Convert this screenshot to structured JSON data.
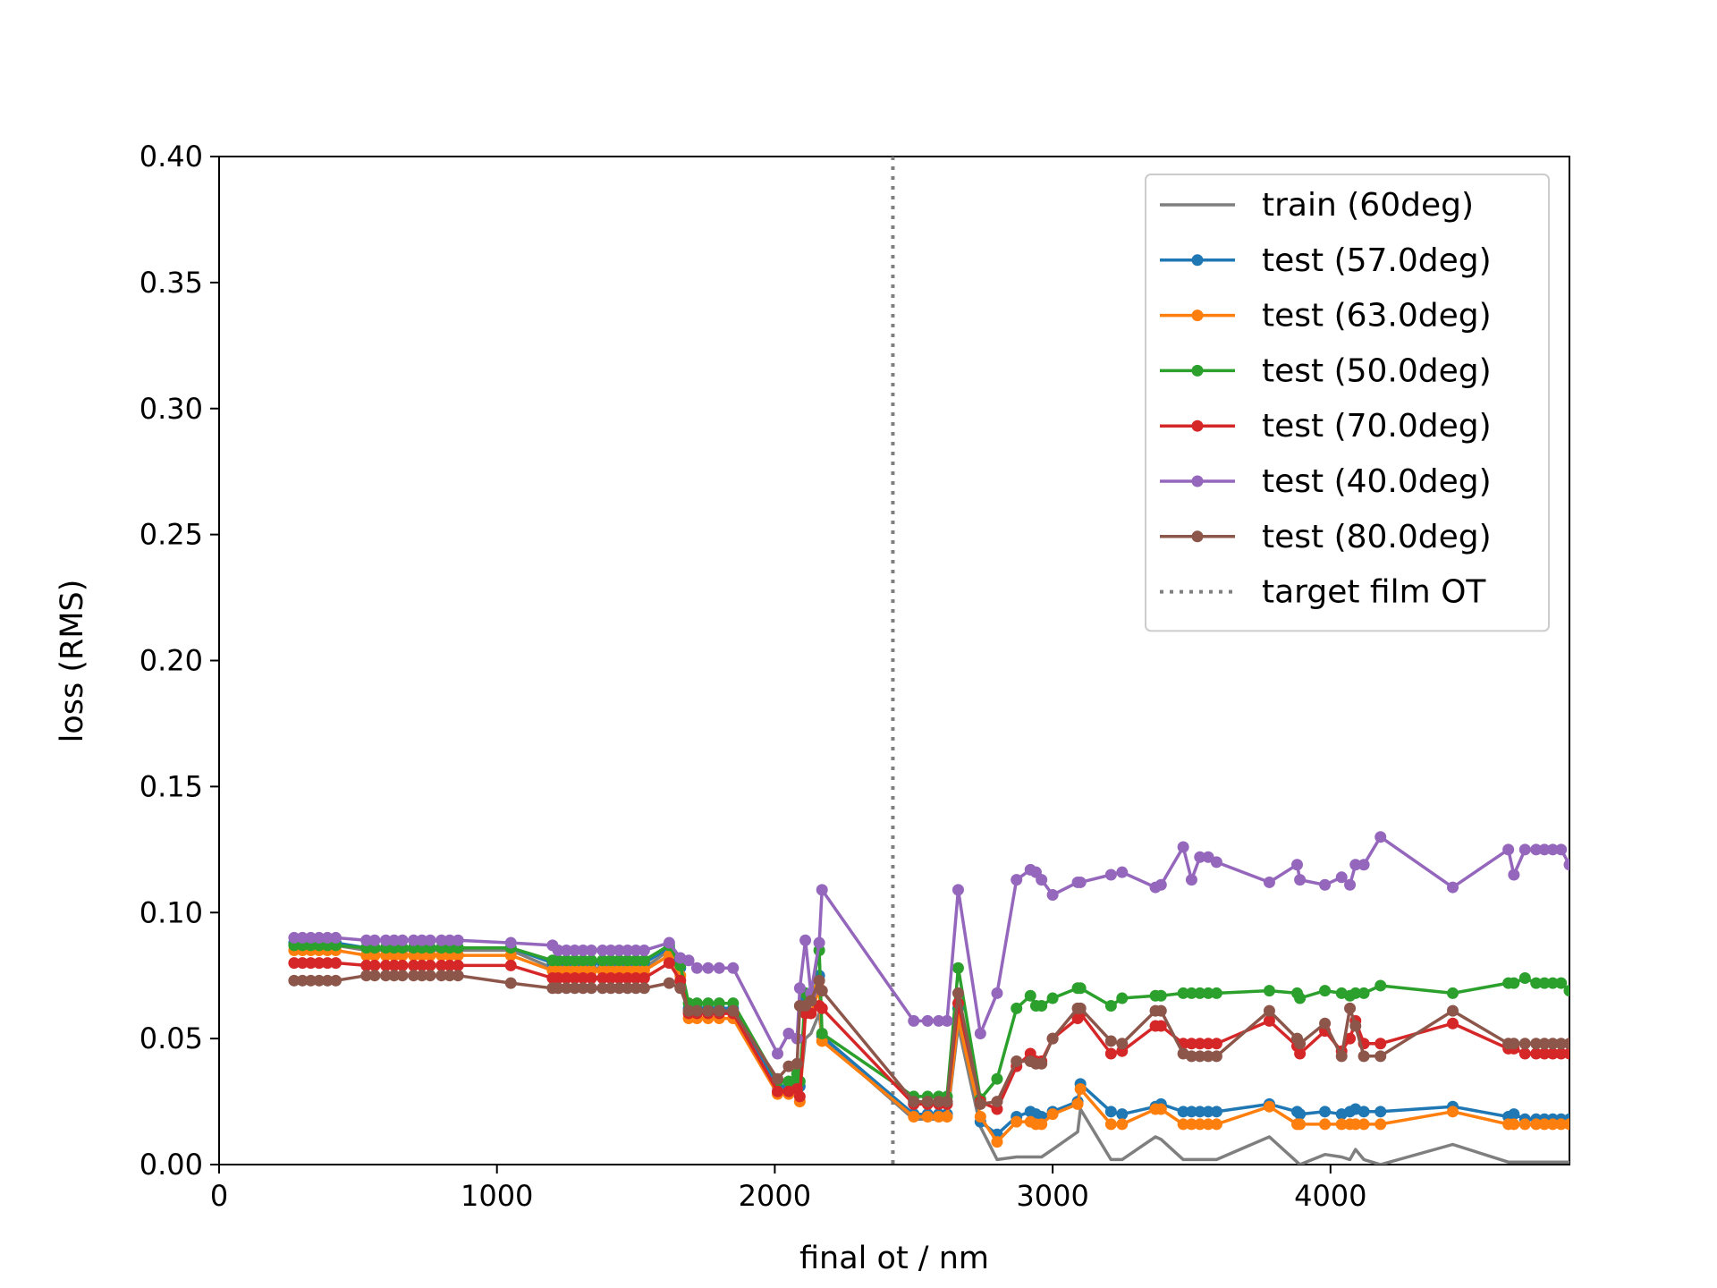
{
  "chart_data": {
    "type": "line",
    "title": "",
    "xlabel": "final ot / nm",
    "ylabel": "loss (RMS)",
    "xlim": [
      0,
      4860
    ],
    "ylim": [
      0,
      0.4
    ],
    "x_ticks": [
      0,
      1000,
      2000,
      3000,
      4000
    ],
    "x_tick_labels": [
      "0",
      "1000",
      "2000",
      "3000",
      "4000"
    ],
    "y_ticks": [
      0,
      0.05,
      0.1,
      0.15,
      0.2,
      0.25,
      0.3,
      0.35,
      0.4
    ],
    "y_tick_labels": [
      "0.00",
      "0.05",
      "0.10",
      "0.15",
      "0.20",
      "0.25",
      "0.30",
      "0.35",
      "0.40"
    ],
    "grid": false,
    "legend_position": "top-right",
    "x": [
      270,
      300,
      330,
      360,
      390,
      420,
      530,
      560,
      600,
      630,
      660,
      700,
      730,
      760,
      800,
      830,
      860,
      1050,
      1200,
      1220,
      1250,
      1280,
      1310,
      1340,
      1380,
      1410,
      1440,
      1470,
      1500,
      1530,
      1620,
      1660,
      1690,
      1720,
      1760,
      1800,
      1850,
      2010,
      2050,
      2080,
      2090,
      2110,
      2130,
      2160,
      2170,
      2500,
      2550,
      2590,
      2620,
      2660,
      2740,
      2800,
      2870,
      2920,
      2940,
      2960,
      3000,
      3090,
      3100,
      3210,
      3250,
      3370,
      3390,
      3470,
      3500,
      3530,
      3560,
      3590,
      3780,
      3880,
      3890,
      3980,
      4040,
      4070,
      4090,
      4120,
      4180,
      4440,
      4640,
      4660,
      4700,
      4740,
      4770,
      4800,
      4830,
      4860
    ],
    "series": [
      {
        "name": "train (60deg)",
        "color": "#7f7f7f",
        "markers": false,
        "values": [
          0.087,
          0.087,
          0.087,
          0.087,
          0.087,
          0.087,
          0.085,
          0.085,
          0.085,
          0.085,
          0.085,
          0.085,
          0.085,
          0.085,
          0.085,
          0.085,
          0.085,
          0.085,
          0.078,
          0.078,
          0.078,
          0.078,
          0.078,
          0.078,
          0.078,
          0.078,
          0.078,
          0.078,
          0.078,
          0.078,
          0.085,
          0.075,
          0.06,
          0.06,
          0.06,
          0.06,
          0.06,
          0.03,
          0.03,
          0.032,
          0.03,
          0.05,
          0.052,
          0.06,
          0.05,
          0.018,
          0.018,
          0.018,
          0.018,
          0.055,
          0.015,
          0.002,
          0.003,
          0.003,
          0.003,
          0.003,
          0.006,
          0.013,
          0.022,
          0.002,
          0.002,
          0.011,
          0.01,
          0.002,
          0.002,
          0.002,
          0.002,
          0.002,
          0.011,
          0.001,
          0.0,
          0.004,
          0.003,
          0.002,
          0.006,
          0.002,
          0.0,
          0.008,
          0.001,
          0.001,
          0.001,
          0.001,
          0.001,
          0.001,
          0.001,
          0.001
        ]
      },
      {
        "name": "test (57.0deg)",
        "color": "#1f77b4",
        "markers": true,
        "values": [
          0.088,
          0.088,
          0.088,
          0.088,
          0.088,
          0.088,
          0.086,
          0.086,
          0.086,
          0.086,
          0.086,
          0.086,
          0.086,
          0.086,
          0.086,
          0.086,
          0.086,
          0.086,
          0.08,
          0.08,
          0.08,
          0.08,
          0.08,
          0.08,
          0.08,
          0.08,
          0.08,
          0.08,
          0.08,
          0.08,
          0.086,
          0.078,
          0.062,
          0.062,
          0.062,
          0.062,
          0.062,
          0.031,
          0.031,
          0.034,
          0.031,
          0.065,
          0.065,
          0.075,
          0.051,
          0.02,
          0.02,
          0.02,
          0.02,
          0.062,
          0.017,
          0.012,
          0.019,
          0.021,
          0.02,
          0.019,
          0.021,
          0.025,
          0.032,
          0.021,
          0.02,
          0.023,
          0.024,
          0.021,
          0.021,
          0.021,
          0.021,
          0.021,
          0.024,
          0.021,
          0.02,
          0.021,
          0.02,
          0.021,
          0.022,
          0.021,
          0.021,
          0.023,
          0.019,
          0.02,
          0.018,
          0.018,
          0.018,
          0.018,
          0.018,
          0.018
        ]
      },
      {
        "name": "test (63.0deg)",
        "color": "#ff7f0e",
        "markers": true,
        "values": [
          0.085,
          0.085,
          0.085,
          0.085,
          0.085,
          0.085,
          0.083,
          0.083,
          0.083,
          0.083,
          0.083,
          0.083,
          0.083,
          0.083,
          0.083,
          0.083,
          0.083,
          0.083,
          0.077,
          0.077,
          0.077,
          0.077,
          0.077,
          0.077,
          0.077,
          0.077,
          0.077,
          0.077,
          0.077,
          0.077,
          0.083,
          0.075,
          0.058,
          0.058,
          0.058,
          0.058,
          0.058,
          0.028,
          0.028,
          0.03,
          0.025,
          0.06,
          0.06,
          0.07,
          0.049,
          0.019,
          0.019,
          0.019,
          0.019,
          0.058,
          0.019,
          0.009,
          0.017,
          0.017,
          0.016,
          0.016,
          0.02,
          0.024,
          0.03,
          0.016,
          0.016,
          0.022,
          0.022,
          0.016,
          0.016,
          0.016,
          0.016,
          0.016,
          0.023,
          0.016,
          0.016,
          0.016,
          0.016,
          0.016,
          0.016,
          0.016,
          0.016,
          0.021,
          0.016,
          0.016,
          0.016,
          0.016,
          0.016,
          0.016,
          0.016,
          0.016
        ]
      },
      {
        "name": "test (50.0deg)",
        "color": "#2ca02c",
        "markers": true,
        "values": [
          0.087,
          0.087,
          0.087,
          0.087,
          0.087,
          0.087,
          0.086,
          0.086,
          0.086,
          0.086,
          0.086,
          0.086,
          0.086,
          0.086,
          0.086,
          0.086,
          0.086,
          0.086,
          0.081,
          0.081,
          0.081,
          0.081,
          0.081,
          0.081,
          0.081,
          0.081,
          0.081,
          0.081,
          0.081,
          0.081,
          0.087,
          0.079,
          0.064,
          0.064,
          0.064,
          0.064,
          0.064,
          0.033,
          0.033,
          0.036,
          0.033,
          0.068,
          0.068,
          0.085,
          0.052,
          0.027,
          0.027,
          0.027,
          0.027,
          0.078,
          0.026,
          0.034,
          0.062,
          0.067,
          0.063,
          0.063,
          0.066,
          0.07,
          0.07,
          0.063,
          0.066,
          0.067,
          0.067,
          0.068,
          0.068,
          0.068,
          0.068,
          0.068,
          0.069,
          0.068,
          0.066,
          0.069,
          0.068,
          0.067,
          0.068,
          0.068,
          0.071,
          0.068,
          0.072,
          0.072,
          0.074,
          0.072,
          0.072,
          0.072,
          0.072,
          0.069
        ]
      },
      {
        "name": "test (70.0deg)",
        "color": "#d62728",
        "markers": true,
        "values": [
          0.08,
          0.08,
          0.08,
          0.08,
          0.08,
          0.08,
          0.079,
          0.079,
          0.079,
          0.079,
          0.079,
          0.079,
          0.079,
          0.079,
          0.079,
          0.079,
          0.079,
          0.079,
          0.074,
          0.074,
          0.074,
          0.074,
          0.074,
          0.074,
          0.074,
          0.074,
          0.074,
          0.074,
          0.074,
          0.074,
          0.08,
          0.073,
          0.06,
          0.06,
          0.06,
          0.06,
          0.06,
          0.029,
          0.029,
          0.03,
          0.027,
          0.06,
          0.06,
          0.063,
          0.062,
          0.024,
          0.024,
          0.024,
          0.024,
          0.064,
          0.025,
          0.022,
          0.039,
          0.044,
          0.041,
          0.041,
          0.05,
          0.058,
          0.06,
          0.044,
          0.045,
          0.055,
          0.055,
          0.048,
          0.048,
          0.048,
          0.048,
          0.048,
          0.057,
          0.047,
          0.044,
          0.053,
          0.045,
          0.05,
          0.057,
          0.048,
          0.048,
          0.056,
          0.046,
          0.046,
          0.044,
          0.044,
          0.044,
          0.044,
          0.044,
          0.044
        ]
      },
      {
        "name": "test (40.0deg)",
        "color": "#9467bd",
        "markers": true,
        "values": [
          0.09,
          0.09,
          0.09,
          0.09,
          0.09,
          0.09,
          0.089,
          0.089,
          0.089,
          0.089,
          0.089,
          0.089,
          0.089,
          0.089,
          0.089,
          0.089,
          0.089,
          0.088,
          0.087,
          0.085,
          0.085,
          0.085,
          0.085,
          0.085,
          0.085,
          0.085,
          0.085,
          0.085,
          0.085,
          0.085,
          0.088,
          0.082,
          0.081,
          0.078,
          0.078,
          0.078,
          0.078,
          0.044,
          0.052,
          0.05,
          0.07,
          0.089,
          0.068,
          0.088,
          0.109,
          0.057,
          0.057,
          0.057,
          0.057,
          0.109,
          0.052,
          0.068,
          0.113,
          0.117,
          0.116,
          0.113,
          0.107,
          0.112,
          0.112,
          0.115,
          0.116,
          0.11,
          0.111,
          0.126,
          0.113,
          0.122,
          0.122,
          0.12,
          0.112,
          0.119,
          0.113,
          0.111,
          0.114,
          0.111,
          0.119,
          0.119,
          0.13,
          0.11,
          0.125,
          0.115,
          0.125,
          0.125,
          0.125,
          0.125,
          0.125,
          0.119
        ]
      },
      {
        "name": "test (80.0deg)",
        "color": "#8c564b",
        "markers": true,
        "values": [
          0.073,
          0.073,
          0.073,
          0.073,
          0.073,
          0.073,
          0.075,
          0.075,
          0.075,
          0.075,
          0.075,
          0.075,
          0.075,
          0.075,
          0.075,
          0.075,
          0.075,
          0.072,
          0.07,
          0.07,
          0.07,
          0.07,
          0.07,
          0.07,
          0.07,
          0.07,
          0.07,
          0.07,
          0.07,
          0.07,
          0.072,
          0.07,
          0.061,
          0.061,
          0.061,
          0.061,
          0.061,
          0.034,
          0.039,
          0.04,
          0.063,
          0.063,
          0.065,
          0.073,
          0.069,
          0.025,
          0.025,
          0.025,
          0.025,
          0.068,
          0.024,
          0.025,
          0.041,
          0.041,
          0.04,
          0.04,
          0.05,
          0.062,
          0.062,
          0.049,
          0.048,
          0.061,
          0.061,
          0.044,
          0.043,
          0.043,
          0.043,
          0.043,
          0.061,
          0.05,
          0.048,
          0.056,
          0.043,
          0.062,
          0.055,
          0.043,
          0.043,
          0.061,
          0.048,
          0.048,
          0.048,
          0.048,
          0.048,
          0.048,
          0.048,
          0.048
        ]
      }
    ],
    "vline": {
      "name": "target film OT",
      "x": 2425,
      "color": "#7f7f7f",
      "style": "dotted"
    }
  }
}
